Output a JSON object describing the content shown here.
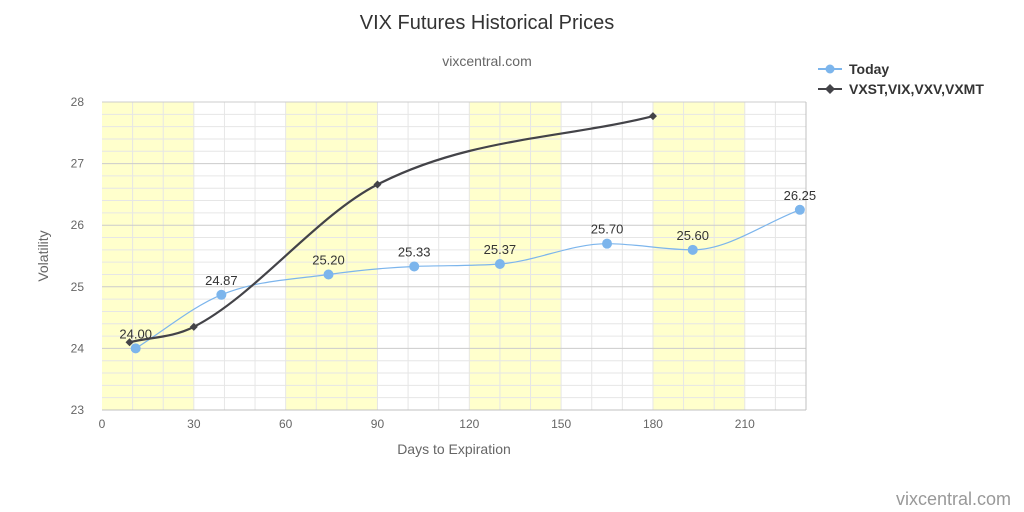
{
  "chart_data": {
    "type": "line",
    "title": "VIX Futures Historical Prices",
    "subtitle": "vixcentral.com",
    "xlabel": "Days to Expiration",
    "ylabel": "Volatility",
    "xlim": [
      0,
      230
    ],
    "ylim": [
      23,
      28
    ],
    "x_ticks": [
      "0",
      "30",
      "60",
      "90",
      "120",
      "150",
      "180",
      "210"
    ],
    "y_ticks": [
      "23",
      "24",
      "25",
      "26",
      "27",
      "28"
    ],
    "grid": true,
    "legend_position": "top-right",
    "series": [
      {
        "name": "Today",
        "color": "#7cb5ec",
        "marker": "circle",
        "points": [
          {
            "x": 11,
            "y": 24.0,
            "label": "24.00"
          },
          {
            "x": 39,
            "y": 24.87,
            "label": "24.87"
          },
          {
            "x": 74,
            "y": 25.2,
            "label": "25.20"
          },
          {
            "x": 102,
            "y": 25.33,
            "label": "25.33"
          },
          {
            "x": 130,
            "y": 25.37,
            "label": "25.37"
          },
          {
            "x": 165,
            "y": 25.7,
            "label": "25.70"
          },
          {
            "x": 193,
            "y": 25.6,
            "label": "25.60"
          },
          {
            "x": 228,
            "y": 26.25,
            "label": "26.25"
          }
        ]
      },
      {
        "name": "VXST,VIX,VXV,VXMT",
        "color": "#434348",
        "marker": "diamond",
        "points": [
          {
            "x": 9,
            "y": 24.1
          },
          {
            "x": 30,
            "y": 24.35
          },
          {
            "x": 90,
            "y": 26.66
          },
          {
            "x": 180,
            "y": 27.77
          }
        ]
      }
    ],
    "band_color": "#ffffcc"
  },
  "credit": "vixcentral.com"
}
